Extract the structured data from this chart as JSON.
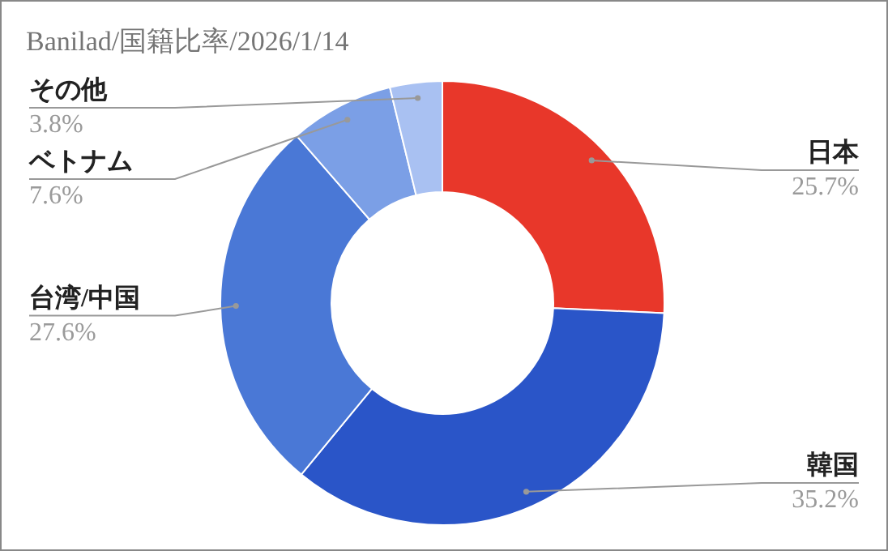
{
  "chart_data": {
    "type": "donut",
    "title": "Banilad/国籍比率/2026/1/14",
    "categories": [
      "日本",
      "韓国",
      "台湾/中国",
      "ベトナム",
      "その他"
    ],
    "values": [
      25.7,
      35.2,
      27.6,
      7.6,
      3.8
    ],
    "value_labels": [
      "25.7%",
      "35.2%",
      "27.6%",
      "7.6%",
      "3.8%"
    ],
    "colors": [
      "#e8372a",
      "#2a55c8",
      "#4a78d6",
      "#7b9fe6",
      "#a9c1f2"
    ]
  }
}
